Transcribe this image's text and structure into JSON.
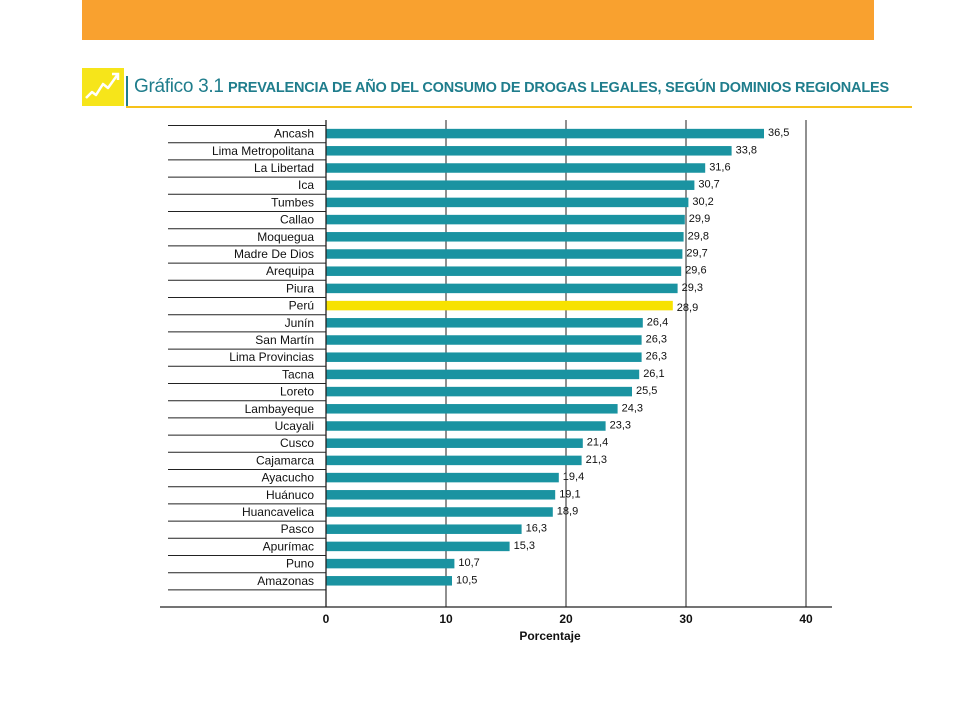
{
  "header": {
    "figure_label": "Gráfico 3.1",
    "title": "PREVALENCIA DE AÑO DEL CONSUMO DE DROGAS LEGALES, SEGÚN DOMINIOS REGIONALES"
  },
  "colors": {
    "top_bar": "#f9a12f",
    "bar": "#1a93a1",
    "highlight_bar": "#f7e200",
    "title": "#1f7d8c"
  },
  "chart_data": {
    "type": "bar",
    "orientation": "horizontal",
    "title": "PREVALENCIA DE AÑO DEL CONSUMO DE DROGAS LEGALES, SEGÚN DOMINIOS REGIONALES",
    "xlabel": "Porcentaje",
    "ylabel": "",
    "xlim": [
      0,
      40
    ],
    "xticks": [
      "0",
      "10",
      "20",
      "30",
      "40"
    ],
    "grid": true,
    "highlight": "Perú",
    "categories": [
      "Ancash",
      "Lima Metropolitana",
      "La Libertad",
      "Ica",
      "Tumbes",
      "Callao",
      "Moquegua",
      "Madre De Dios",
      "Arequipa",
      "Piura",
      "Perú",
      "Junín",
      "San Martín",
      "Lima Provincias",
      "Tacna",
      "Loreto",
      "Lambayeque",
      "Ucayali",
      "Cusco",
      "Cajamarca",
      "Ayacucho",
      "Huánuco",
      "Huancavelica",
      "Pasco",
      "Apurímac",
      "Puno",
      "Amazonas"
    ],
    "values": [
      36.5,
      33.8,
      31.6,
      30.7,
      30.2,
      29.9,
      29.8,
      29.7,
      29.6,
      29.3,
      28.9,
      26.4,
      26.3,
      26.3,
      26.1,
      25.5,
      24.3,
      23.3,
      21.4,
      21.3,
      19.4,
      19.1,
      18.9,
      16.3,
      15.3,
      10.7,
      10.5
    ],
    "value_labels": [
      "36,5",
      "33,8",
      "31,6",
      "30,7",
      "30,2",
      "29,9",
      "29,8",
      "29,7",
      "29,6",
      "29,3",
      "28,9",
      "26,4",
      "26,3",
      "26,3",
      "26,1",
      "25,5",
      "24,3",
      "23,3",
      "21,4",
      "21,3",
      "19,4",
      "19,1",
      "18,9",
      "16,3",
      "15,3",
      "10,7",
      "10,5"
    ]
  }
}
